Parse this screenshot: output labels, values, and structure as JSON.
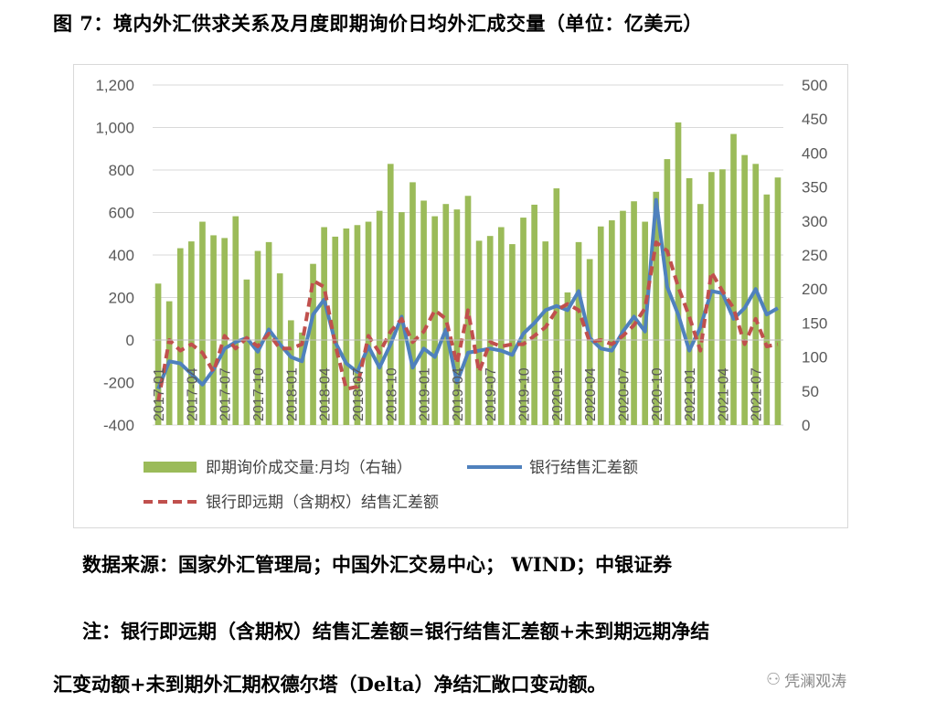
{
  "title": "图 7：境内外汇供求关系及月度即期询价日均外汇成交量（单位：亿美元）",
  "source": "数据来源：国家外汇管理局；中国外汇交易中心；  WIND；中银证券",
  "note_line1": "注：银行即远期（含期权）结售汇差额=银行结售汇差额+未到期远期净结",
  "note_line2": "汇变动额+未到期外汇期权德尔塔（Delta）净结汇敞口变动额。",
  "watermark": "凭澜观涛",
  "colors": {
    "bar": "#9bbb59",
    "line": "#4f81bd",
    "dashed": "#c0504d",
    "grid": "#d9d9d9",
    "axis_text": "#595959"
  },
  "chart_data": {
    "type": "bar+line",
    "title": "",
    "x": [
      "2017-01",
      "2017-02",
      "2017-03",
      "2017-04",
      "2017-05",
      "2017-06",
      "2017-07",
      "2017-08",
      "2017-09",
      "2017-10",
      "2017-11",
      "2017-12",
      "2018-01",
      "2018-02",
      "2018-03",
      "2018-04",
      "2018-05",
      "2018-06",
      "2018-07",
      "2018-08",
      "2018-09",
      "2018-10",
      "2018-11",
      "2018-12",
      "2019-01",
      "2019-02",
      "2019-03",
      "2019-04",
      "2019-05",
      "2019-06",
      "2019-07",
      "2019-08",
      "2019-09",
      "2019-10",
      "2019-11",
      "2019-12",
      "2020-01",
      "2020-02",
      "2020-03",
      "2020-04",
      "2020-05",
      "2020-06",
      "2020-07",
      "2020-08",
      "2020-09",
      "2020-10",
      "2020-11",
      "2020-12",
      "2021-01",
      "2021-02",
      "2021-03",
      "2021-04",
      "2021-05",
      "2021-06",
      "2021-07",
      "2021-08",
      "2021-09"
    ],
    "x_tick_labels": [
      "2017-01",
      "2017-04",
      "2017-07",
      "2017-10",
      "2018-01",
      "2018-04",
      "2018-07",
      "2018-10",
      "2019-01",
      "2019-04",
      "2019-07",
      "2019-10",
      "2020-01",
      "2020-04",
      "2020-07",
      "2020-10",
      "2021-01",
      "2021-04",
      "2021-07"
    ],
    "x_tick_step": 3,
    "left_axis": {
      "min": -400,
      "max": 1200,
      "step": 200,
      "tick_labels": [
        "-400",
        "-200",
        "0",
        "200",
        "400",
        "600",
        "800",
        "1,000",
        "1,200"
      ]
    },
    "right_axis": {
      "min": 0,
      "max": 500,
      "step": 50,
      "tick_labels": [
        "0",
        "50",
        "100",
        "150",
        "200",
        "250",
        "300",
        "350",
        "400",
        "450",
        "500"
      ]
    },
    "grid": true,
    "legend_placement": "bottom",
    "series": [
      {
        "name": "即期询价成交量:月均（右轴）",
        "kind": "bar",
        "axis": "right",
        "values": [
          208,
          182,
          260,
          270,
          299,
          279,
          275,
          307,
          214,
          256,
          269,
          223,
          154,
          136,
          237,
          291,
          277,
          289,
          294,
          299,
          315,
          384,
          313,
          357,
          330,
          307,
          325,
          317,
          337,
          271,
          278,
          291,
          266,
          305,
          324,
          270,
          348,
          195,
          269,
          244,
          292,
          301,
          315,
          329,
          299,
          343,
          391,
          445,
          363,
          325,
          372,
          376,
          428,
          397,
          384,
          339,
          364
        ]
      },
      {
        "name": "银行结售汇差额",
        "kind": "line",
        "axis": "left",
        "values": [
          -230,
          -100,
          -110,
          -160,
          -210,
          -140,
          -40,
          -10,
          10,
          -55,
          50,
          -20,
          -80,
          -100,
          120,
          190,
          -10,
          -110,
          -150,
          -30,
          -130,
          -20,
          110,
          -130,
          -40,
          -80,
          50,
          -200,
          -60,
          -50,
          -40,
          -50,
          -70,
          30,
          80,
          140,
          160,
          140,
          230,
          10,
          -40,
          -50,
          40,
          110,
          40,
          660,
          250,
          120,
          -50,
          60,
          230,
          220,
          100,
          150,
          240,
          120,
          150
        ]
      },
      {
        "name": "银行即远期（含期权）结售汇差额",
        "kind": "dashed",
        "axis": "left",
        "values": [
          -290,
          0,
          -50,
          -20,
          -60,
          -150,
          20,
          -40,
          10,
          -30,
          30,
          -40,
          -40,
          -20,
          280,
          250,
          -20,
          -230,
          -220,
          20,
          -60,
          40,
          100,
          -10,
          40,
          140,
          100,
          -110,
          140,
          -150,
          -10,
          -30,
          -20,
          -20,
          20,
          60,
          140,
          170,
          140,
          -10,
          0,
          -20,
          20,
          70,
          150,
          460,
          420,
          250,
          110,
          -50,
          320,
          230,
          150,
          -20,
          100,
          -30,
          -20
        ]
      }
    ]
  }
}
